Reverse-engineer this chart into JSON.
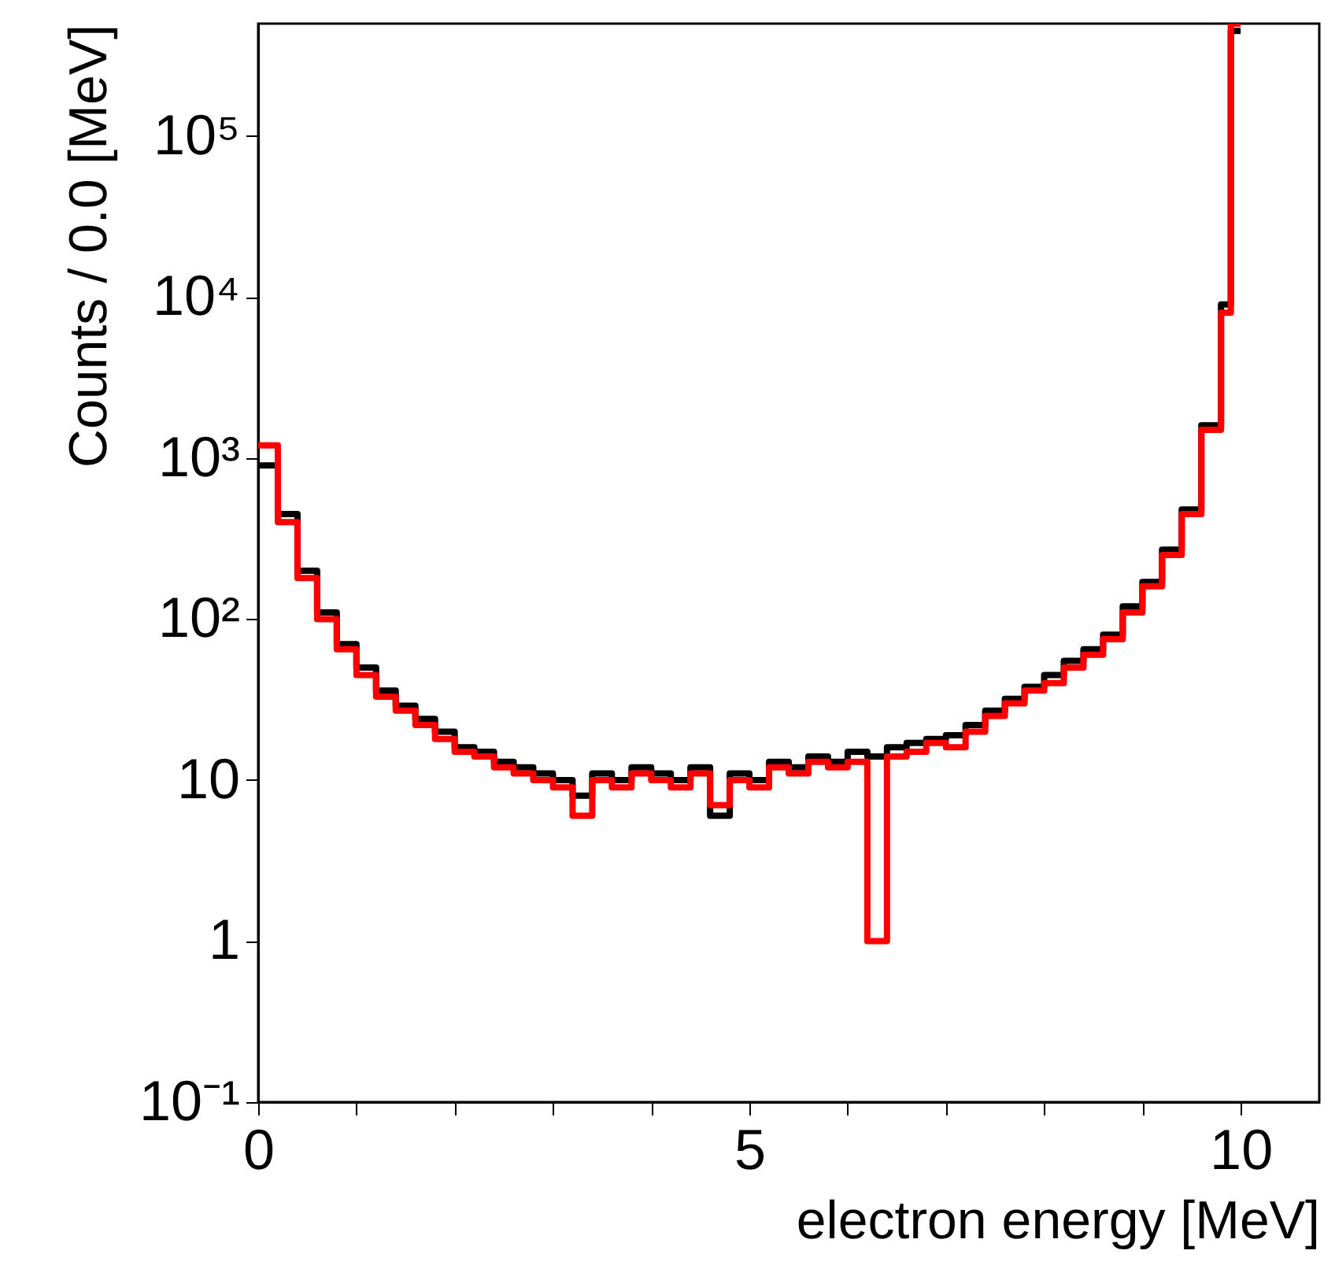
{
  "chart_data": {
    "type": "histogram",
    "xlabel": "electron energy [MeV]",
    "ylabel": "Counts / 0.0 [MeV]",
    "bins": [
      0,
      0.2,
      0.4,
      0.6,
      0.8,
      1,
      1.2,
      1.4,
      1.6,
      1.8,
      2,
      2.2,
      2.4,
      2.6,
      2.8,
      3,
      3.2,
      3.4,
      3.6,
      3.8,
      4,
      4.2,
      4.4,
      4.6,
      4.8,
      5,
      5.2,
      5.4,
      5.6,
      5.8,
      6,
      6.2,
      6.4,
      6.6,
      6.8,
      7,
      7.2,
      7.4,
      7.6,
      7.8,
      8,
      8.2,
      8.4,
      8.6,
      8.8,
      9,
      9.2,
      9.4,
      9.6,
      9.8,
      9.9,
      10
    ],
    "series": [
      {
        "color": "#000000",
        "values": [
          900,
          450,
          200,
          110,
          70,
          50,
          36,
          29,
          24,
          20,
          16,
          15,
          13,
          12,
          11,
          10,
          8,
          11,
          10,
          12,
          11,
          10,
          12,
          6,
          11,
          10,
          13,
          12,
          14,
          13,
          15,
          14,
          16,
          17,
          18,
          19,
          22,
          27,
          32,
          38,
          45,
          55,
          65,
          80,
          120,
          170,
          270,
          480,
          1600,
          9000,
          450000
        ]
      },
      {
        "color": "#ff0000",
        "values": [
          1200,
          400,
          180,
          100,
          65,
          45,
          33,
          27,
          22,
          18,
          15,
          14,
          12,
          11,
          10,
          9,
          6,
          10,
          9,
          11,
          10,
          9,
          11,
          7,
          10,
          9,
          12,
          11,
          13,
          12,
          13,
          1,
          14,
          15,
          17,
          16,
          20,
          25,
          30,
          36,
          40,
          50,
          60,
          75,
          110,
          160,
          250,
          450,
          1500,
          8000,
          500000
        ]
      }
    ],
    "xlim": [
      0,
      10.8
    ],
    "ylim": [
      0.1,
      500000
    ],
    "log": true,
    "grid": false,
    "xticks": [
      0,
      {
        "value": 1,
        "label": null
      },
      {
        "value": 2,
        "label": null
      },
      {
        "value": 3,
        "label": null
      },
      {
        "value": 4,
        "label": null
      },
      5,
      {
        "value": 6,
        "label": null
      },
      {
        "value": 7,
        "label": null
      },
      {
        "value": 8,
        "label": null
      },
      {
        "value": 9,
        "label": null
      },
      10
    ],
    "yticks": [
      {
        "value": 0.1,
        "label": "10⁻¹"
      },
      1,
      10,
      {
        "value": 100,
        "label": "10²"
      },
      {
        "value": 1000,
        "label": "10³"
      },
      {
        "value": 10000,
        "label": "10⁴"
      },
      {
        "value": 100000,
        "label": "10⁵"
      }
    ]
  }
}
